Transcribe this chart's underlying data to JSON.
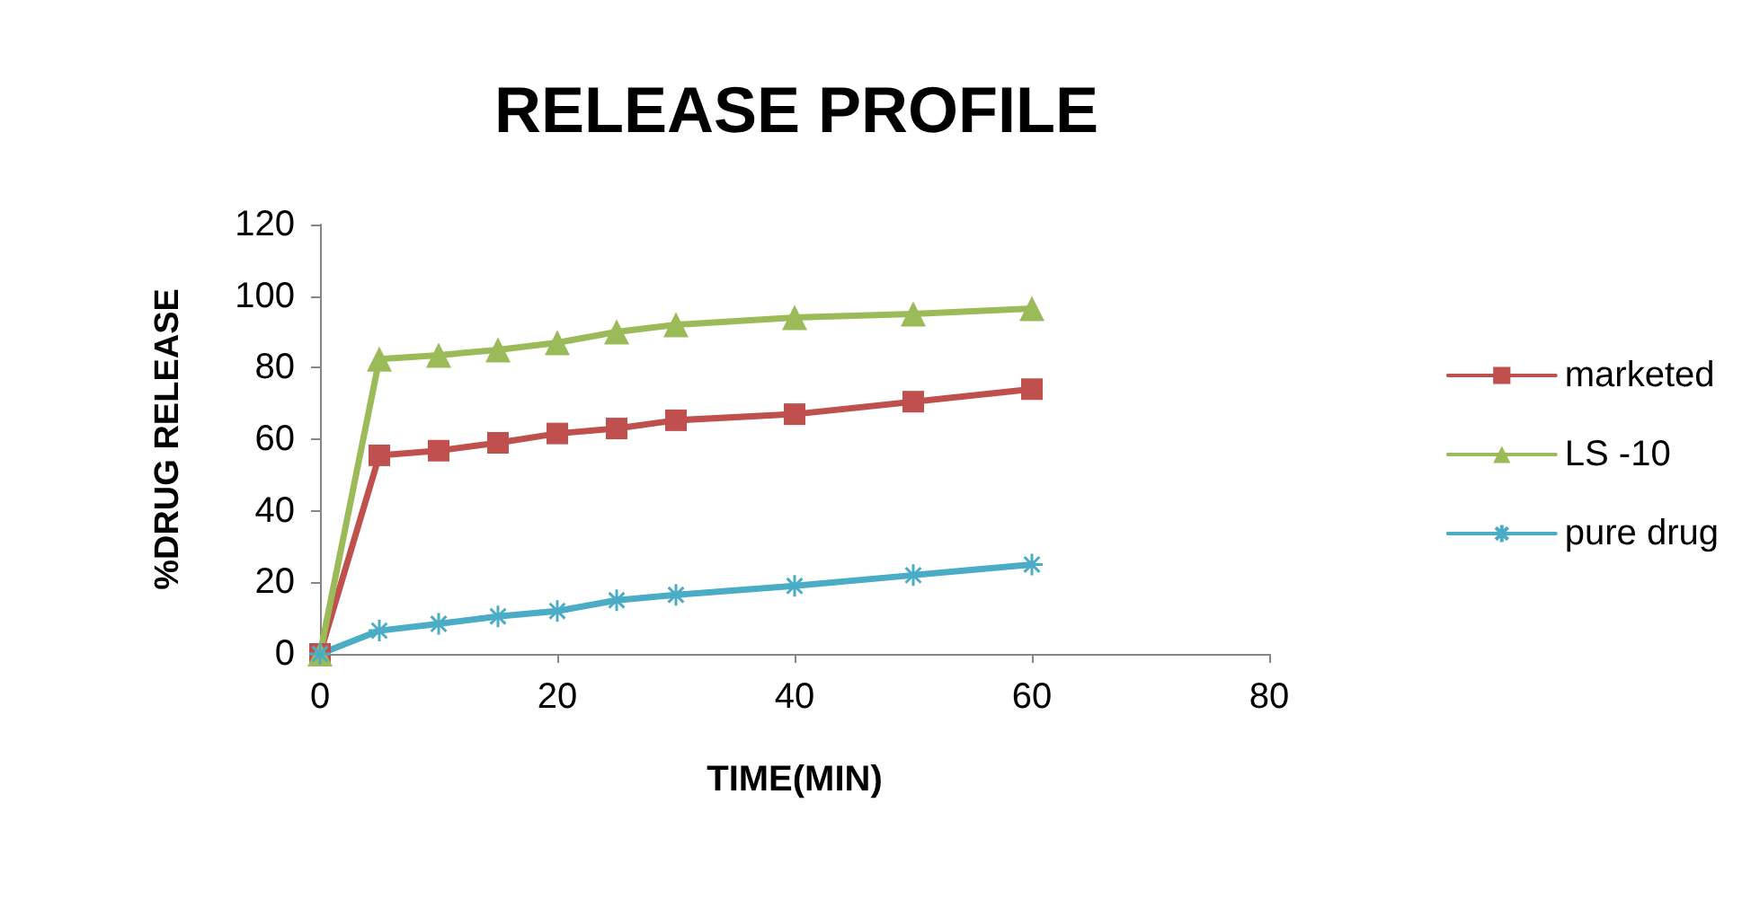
{
  "chart_data": {
    "type": "line",
    "title": "RELEASE PROFILE",
    "xlabel": "TIME(MIN)",
    "ylabel": "%DRUG RELEASE",
    "x": [
      0,
      5,
      10,
      15,
      20,
      25,
      30,
      40,
      50,
      60
    ],
    "xlim": [
      0,
      80
    ],
    "xticks": [
      0,
      20,
      40,
      60,
      80
    ],
    "ylim": [
      0,
      120
    ],
    "yticks": [
      0,
      20,
      40,
      60,
      80,
      100,
      120
    ],
    "grid": false,
    "legend": "right",
    "series": [
      {
        "name": "marketed",
        "color": "#c0504d",
        "marker": "square",
        "values": [
          0,
          55.5,
          56.8,
          59,
          61.6,
          63,
          65.3,
          67,
          70.5,
          74
        ]
      },
      {
        "name": "LS -10",
        "color": "#9bbb59",
        "marker": "triangle",
        "values": [
          0,
          82.4,
          83.5,
          85,
          87,
          90,
          92,
          94,
          95,
          96.5
        ]
      },
      {
        "name": "pure drug",
        "color": "#4bacc6",
        "marker": "cross",
        "values": [
          0,
          6.5,
          8.4,
          10.5,
          12,
          15,
          16.5,
          19,
          22,
          25
        ]
      }
    ]
  }
}
